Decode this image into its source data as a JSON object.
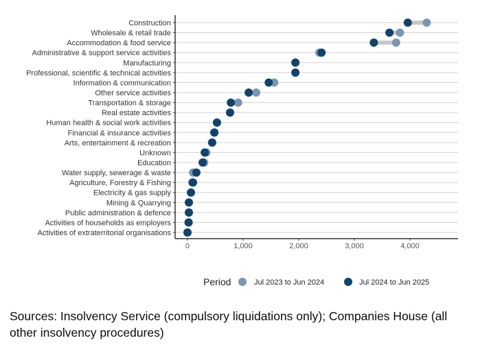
{
  "chart_data": {
    "type": "dumbbell",
    "categories": [
      "Construction",
      "Wholesale & retail trade",
      "Accommodation & food service",
      "Administrative & support service activities",
      "Manufacturing",
      "Professional, scientific & technical activities",
      "Information & communication",
      "Other service activities",
      "Transportation & storage",
      "Real estate activities",
      "Human health & social work activities",
      "Financial & insurance activities",
      "Arts, entertainment & recreation",
      "Unknown",
      "Education",
      "Water supply, sewerage & waste",
      "Agriculture, Forestry & Fishing",
      "Electricity & gas supply",
      "Mining & Quarrying",
      "Public administration & defence",
      "Activities of households as employers",
      "Activities of extraterritorial organisations"
    ],
    "series": [
      {
        "name": "Jul 2023 to Jun 2024",
        "color": "#7a96b3",
        "values": [
          4300,
          3820,
          3750,
          2370,
          1940,
          1940,
          1560,
          1235,
          910,
          765,
          530,
          480,
          440,
          340,
          300,
          100,
          85,
          62,
          25,
          25,
          20,
          0
        ]
      },
      {
        "name": "Jul 2024 to Jun 2025",
        "color": "#12436d",
        "values": [
          3960,
          3630,
          3350,
          2410,
          1940,
          1940,
          1460,
          1100,
          780,
          765,
          530,
          484,
          444,
          310,
          272,
          160,
          99,
          62,
          25,
          25,
          20,
          0
        ]
      }
    ],
    "xlim": [
      -200,
      4850
    ],
    "xticks": [
      0,
      1000,
      2000,
      3000,
      4000
    ],
    "xtick_labels": [
      "0",
      "1,000",
      "2,000",
      "3,000",
      "4,000"
    ],
    "legend_title": "Period",
    "legend_position": "bottom",
    "grid": "horizontal"
  },
  "source": "Sources: Insolvency Service (compulsory liquidations only); Companies House (all other insolvency procedures)"
}
